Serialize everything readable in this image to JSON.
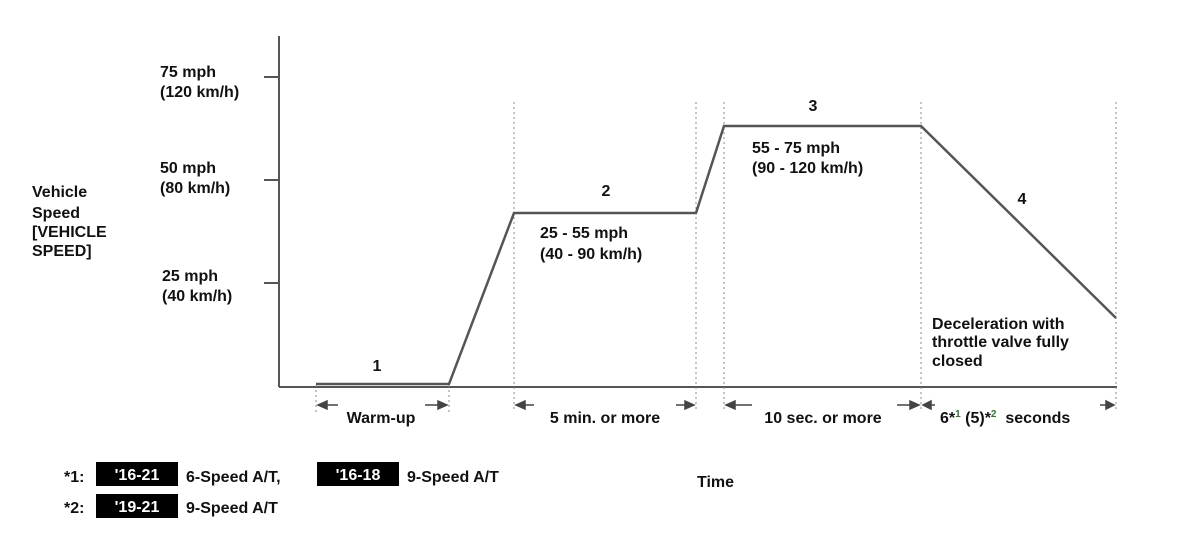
{
  "y_axis": {
    "title_lines": [
      "Vehicle",
      "Speed",
      "[VEHICLE",
      "SPEED]"
    ],
    "ticks": [
      {
        "line1": "75 mph",
        "line2": "(120 km/h)"
      },
      {
        "line1": "50 mph",
        "line2": "(80 km/h)"
      },
      {
        "line1": "25 mph",
        "line2": "(40 km/h)"
      }
    ]
  },
  "x_axis": {
    "title": "Time"
  },
  "phases": [
    {
      "number": "1",
      "duration": "Warm-up"
    },
    {
      "number": "2",
      "speed_line1": "25 - 55 mph",
      "speed_line2": "(40 - 90 km/h)",
      "duration": "5 min. or more"
    },
    {
      "number": "3",
      "speed_line1": "55 - 75 mph",
      "speed_line2": "(90 - 120 km/h)",
      "duration": "10 sec. or more"
    },
    {
      "number": "4",
      "note_lines": [
        "Deceleration with",
        "throttle valve fully",
        "closed"
      ],
      "duration_a": "6*",
      "duration_sup1": "1",
      "duration_b": " (5)*",
      "duration_sup2": "2",
      "duration_c": "  seconds"
    }
  ],
  "footnotes": [
    {
      "marker": "*1:",
      "badge1": "'16-21",
      "text1": "6-Speed A/T,",
      "badge2": "'16-18",
      "text2": "9-Speed A/T"
    },
    {
      "marker": "*2:",
      "badge1": "'19-21",
      "text1": "9-Speed A/T"
    }
  ],
  "colors": {
    "line": "#555555",
    "badge_bg": "#000000",
    "badge_text": "#ffffff",
    "superscript": "#2a7a2a"
  }
}
